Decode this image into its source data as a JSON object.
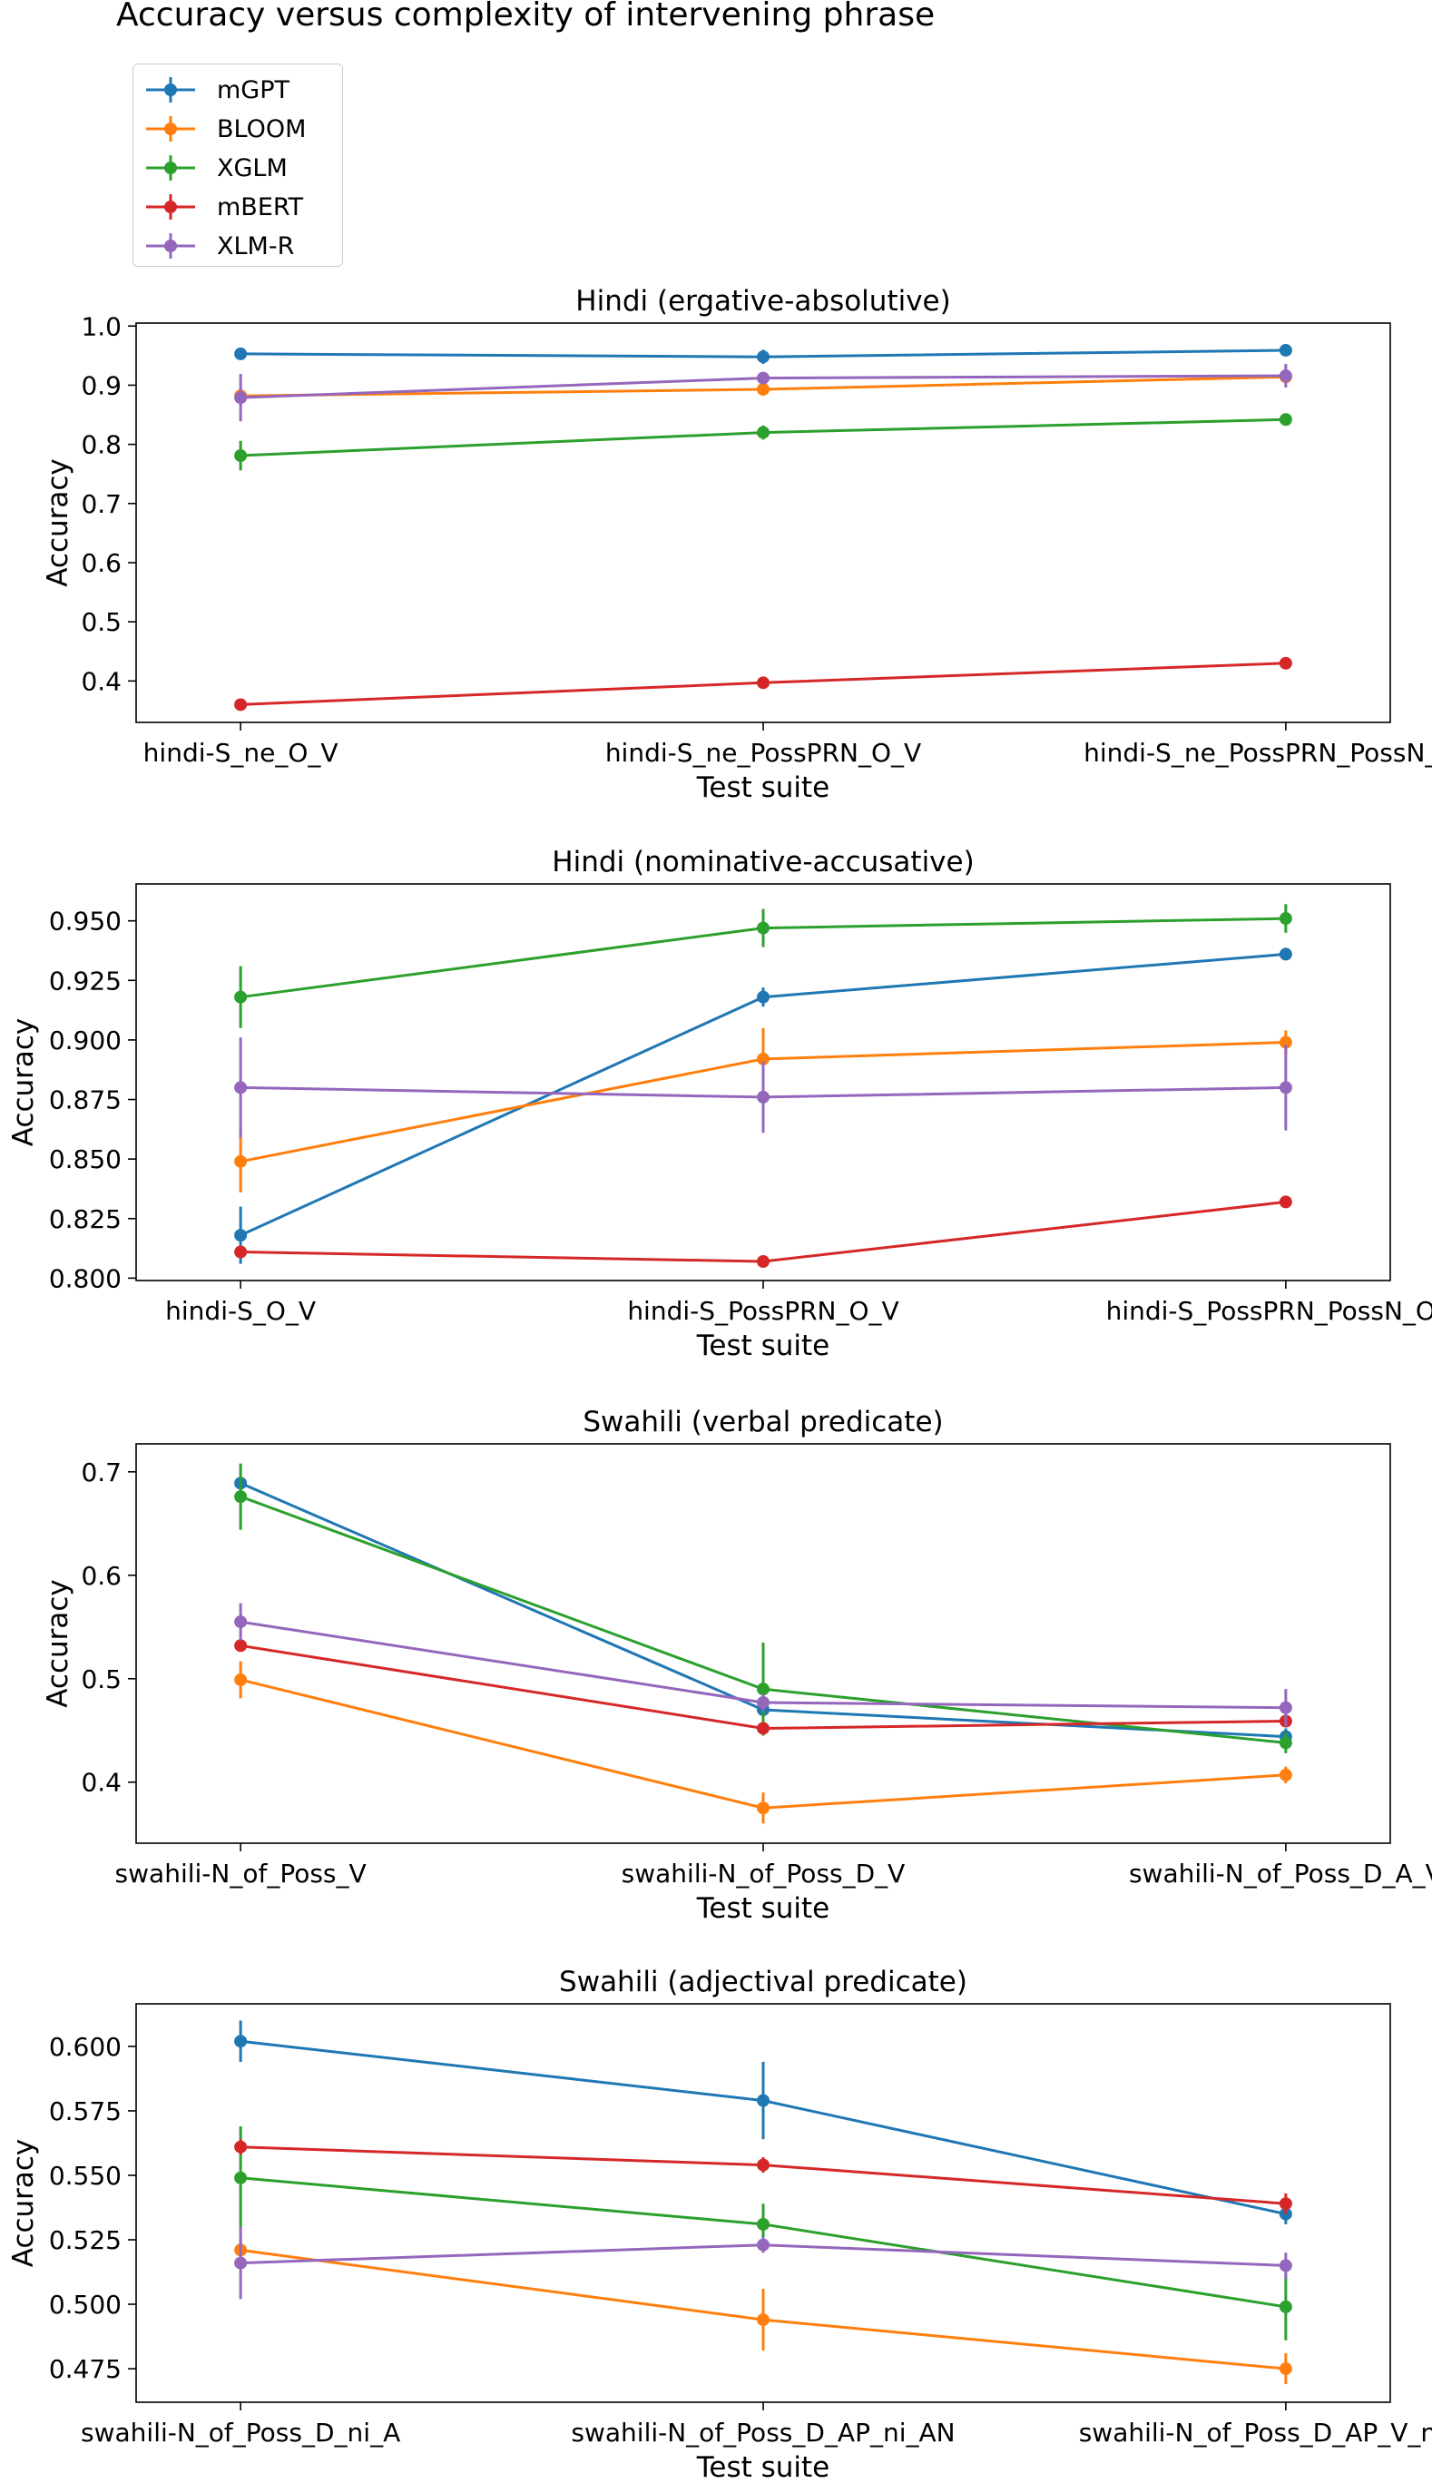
{
  "figure_title": "Accuracy versus complexity of intervening phrase",
  "legend": {
    "entries": [
      {
        "name": "mGPT",
        "color": "#1f77b4"
      },
      {
        "name": "BLOOM",
        "color": "#ff7f0e"
      },
      {
        "name": "XGLM",
        "color": "#2ca02c"
      },
      {
        "name": "mBERT",
        "color": "#d62728"
      },
      {
        "name": "XLM-R",
        "color": "#9467bd"
      }
    ]
  },
  "chart_data": [
    {
      "type": "line",
      "title": "Hindi (ergative-absolutive)",
      "xlabel": "Test suite",
      "ylabel": "Accuracy",
      "categories": [
        "hindi-S_ne_O_V",
        "hindi-S_ne_PossPRN_O_V",
        "hindi-S_ne_PossPRN_PossN_O_V"
      ],
      "ylim": [
        0.33,
        1.005
      ],
      "yticks": [
        0.4,
        0.5,
        0.6,
        0.7,
        0.8,
        0.9,
        1.0
      ],
      "ytick_labels": [
        "0.4",
        "0.5",
        "0.6",
        "0.7",
        "0.8",
        "0.9",
        "1.0"
      ],
      "series": [
        {
          "name": "mGPT",
          "values": [
            0.953,
            0.948,
            0.959
          ],
          "err": [
            0.004,
            0.012,
            0.01
          ]
        },
        {
          "name": "BLOOM",
          "values": [
            0.882,
            0.893,
            0.914
          ],
          "err": [
            0.01,
            0.01,
            0.006
          ]
        },
        {
          "name": "XGLM",
          "values": [
            0.781,
            0.82,
            0.842
          ],
          "err": [
            0.025,
            0.012,
            0.005
          ]
        },
        {
          "name": "mBERT",
          "values": [
            0.36,
            0.397,
            0.43
          ],
          "err": [
            0.005,
            0.005,
            0.005
          ]
        },
        {
          "name": "XLM-R",
          "values": [
            0.879,
            0.912,
            0.916
          ],
          "err": [
            0.04,
            0.01,
            0.02
          ]
        }
      ]
    },
    {
      "type": "line",
      "title": "Hindi (nominative-accusative)",
      "xlabel": "Test suite",
      "ylabel": "Accuracy",
      "categories": [
        "hindi-S_O_V",
        "hindi-S_PossPRN_O_V",
        "hindi-S_PossPRN_PossN_O_V"
      ],
      "ylim": [
        0.799,
        0.9655
      ],
      "yticks": [
        0.8,
        0.825,
        0.85,
        0.875,
        0.9,
        0.925,
        0.95
      ],
      "ytick_labels": [
        "0.800",
        "0.825",
        "0.850",
        "0.875",
        "0.900",
        "0.925",
        "0.950"
      ],
      "series": [
        {
          "name": "mGPT",
          "values": [
            0.818,
            0.918,
            0.936
          ],
          "err": [
            0.012,
            0.004,
            0.002
          ]
        },
        {
          "name": "BLOOM",
          "values": [
            0.849,
            0.892,
            0.899
          ],
          "err": [
            0.013,
            0.013,
            0.005
          ]
        },
        {
          "name": "XGLM",
          "values": [
            0.918,
            0.947,
            0.951
          ],
          "err": [
            0.013,
            0.008,
            0.006
          ]
        },
        {
          "name": "mBERT",
          "values": [
            0.811,
            0.807,
            0.832
          ],
          "err": [
            0.002,
            0.002,
            0.002
          ]
        },
        {
          "name": "XLM-R",
          "values": [
            0.88,
            0.876,
            0.88
          ],
          "err": [
            0.021,
            0.015,
            0.018
          ]
        }
      ]
    },
    {
      "type": "line",
      "title": "Swahili (verbal predicate)",
      "xlabel": "Test suite",
      "ylabel": "Accuracy",
      "categories": [
        "swahili-N_of_Poss_V",
        "swahili-N_of_Poss_D_V",
        "swahili-N_of_Poss_D_A_V"
      ],
      "ylim": [
        0.341,
        0.727
      ],
      "yticks": [
        0.4,
        0.5,
        0.6,
        0.7
      ],
      "ytick_labels": [
        "0.4",
        "0.5",
        "0.6",
        "0.7"
      ],
      "series": [
        {
          "name": "mGPT",
          "values": [
            0.689,
            0.47,
            0.444
          ],
          "err": [
            0.005,
            0.005,
            0.008
          ]
        },
        {
          "name": "BLOOM",
          "values": [
            0.499,
            0.375,
            0.407
          ],
          "err": [
            0.018,
            0.015,
            0.008
          ]
        },
        {
          "name": "XGLM",
          "values": [
            0.676,
            0.49,
            0.438
          ],
          "err": [
            0.032,
            0.045,
            0.01
          ]
        },
        {
          "name": "mBERT",
          "values": [
            0.532,
            0.452,
            0.459
          ],
          "err": [
            0.005,
            0.005,
            0.005
          ]
        },
        {
          "name": "XLM-R",
          "values": [
            0.555,
            0.477,
            0.472
          ],
          "err": [
            0.018,
            0.008,
            0.018
          ]
        }
      ]
    },
    {
      "type": "line",
      "title": "Swahili (adjectival predicate)",
      "xlabel": "Test suite",
      "ylabel": "Accuracy",
      "categories": [
        "swahili-N_of_Poss_D_ni_A",
        "swahili-N_of_Poss_D_AP_ni_AN",
        "swahili-N_of_Poss_D_AP_V_ni_AN"
      ],
      "ylim": [
        0.462,
        0.6165
      ],
      "yticks": [
        0.475,
        0.5,
        0.525,
        0.55,
        0.575,
        0.6
      ],
      "ytick_labels": [
        "0.475",
        "0.500",
        "0.525",
        "0.550",
        "0.575",
        "0.600"
      ],
      "series": [
        {
          "name": "mGPT",
          "values": [
            0.602,
            0.579,
            0.535
          ],
          "err": [
            0.008,
            0.015,
            0.004
          ]
        },
        {
          "name": "BLOOM",
          "values": [
            0.521,
            0.494,
            0.475
          ],
          "err": [
            0.005,
            0.012,
            0.006
          ]
        },
        {
          "name": "XGLM",
          "values": [
            0.549,
            0.531,
            0.499
          ],
          "err": [
            0.02,
            0.008,
            0.013
          ]
        },
        {
          "name": "mBERT",
          "values": [
            0.561,
            0.554,
            0.539
          ],
          "err": [
            0.003,
            0.003,
            0.004
          ]
        },
        {
          "name": "XLM-R",
          "values": [
            0.516,
            0.523,
            0.515
          ],
          "err": [
            0.014,
            0.003,
            0.005
          ]
        }
      ]
    }
  ]
}
